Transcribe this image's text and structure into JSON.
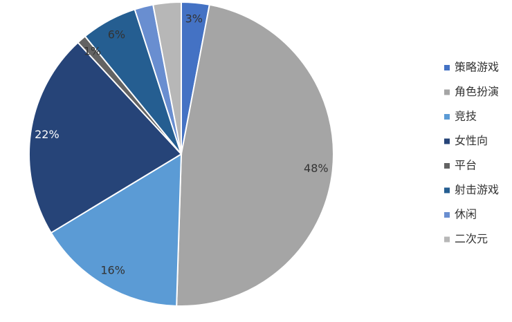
{
  "chart_data": {
    "type": "pie",
    "categories": [
      "策略游戏",
      "角色扮演",
      "竞技",
      "女性向",
      "平台",
      "射击游戏",
      "休闲",
      "二次元"
    ],
    "values": [
      3,
      48,
      16,
      22,
      1,
      6,
      2,
      3
    ],
    "value_labels": [
      "3%",
      "48%",
      "16%",
      "22%",
      "1%",
      "6%",
      null,
      null
    ],
    "colors": [
      "#4472c4",
      "#a5a5a5",
      "#5b9bd5",
      "#264478",
      "#636363",
      "#255e91",
      "#698ed0",
      "#b7b7b7"
    ],
    "legend": "right"
  }
}
